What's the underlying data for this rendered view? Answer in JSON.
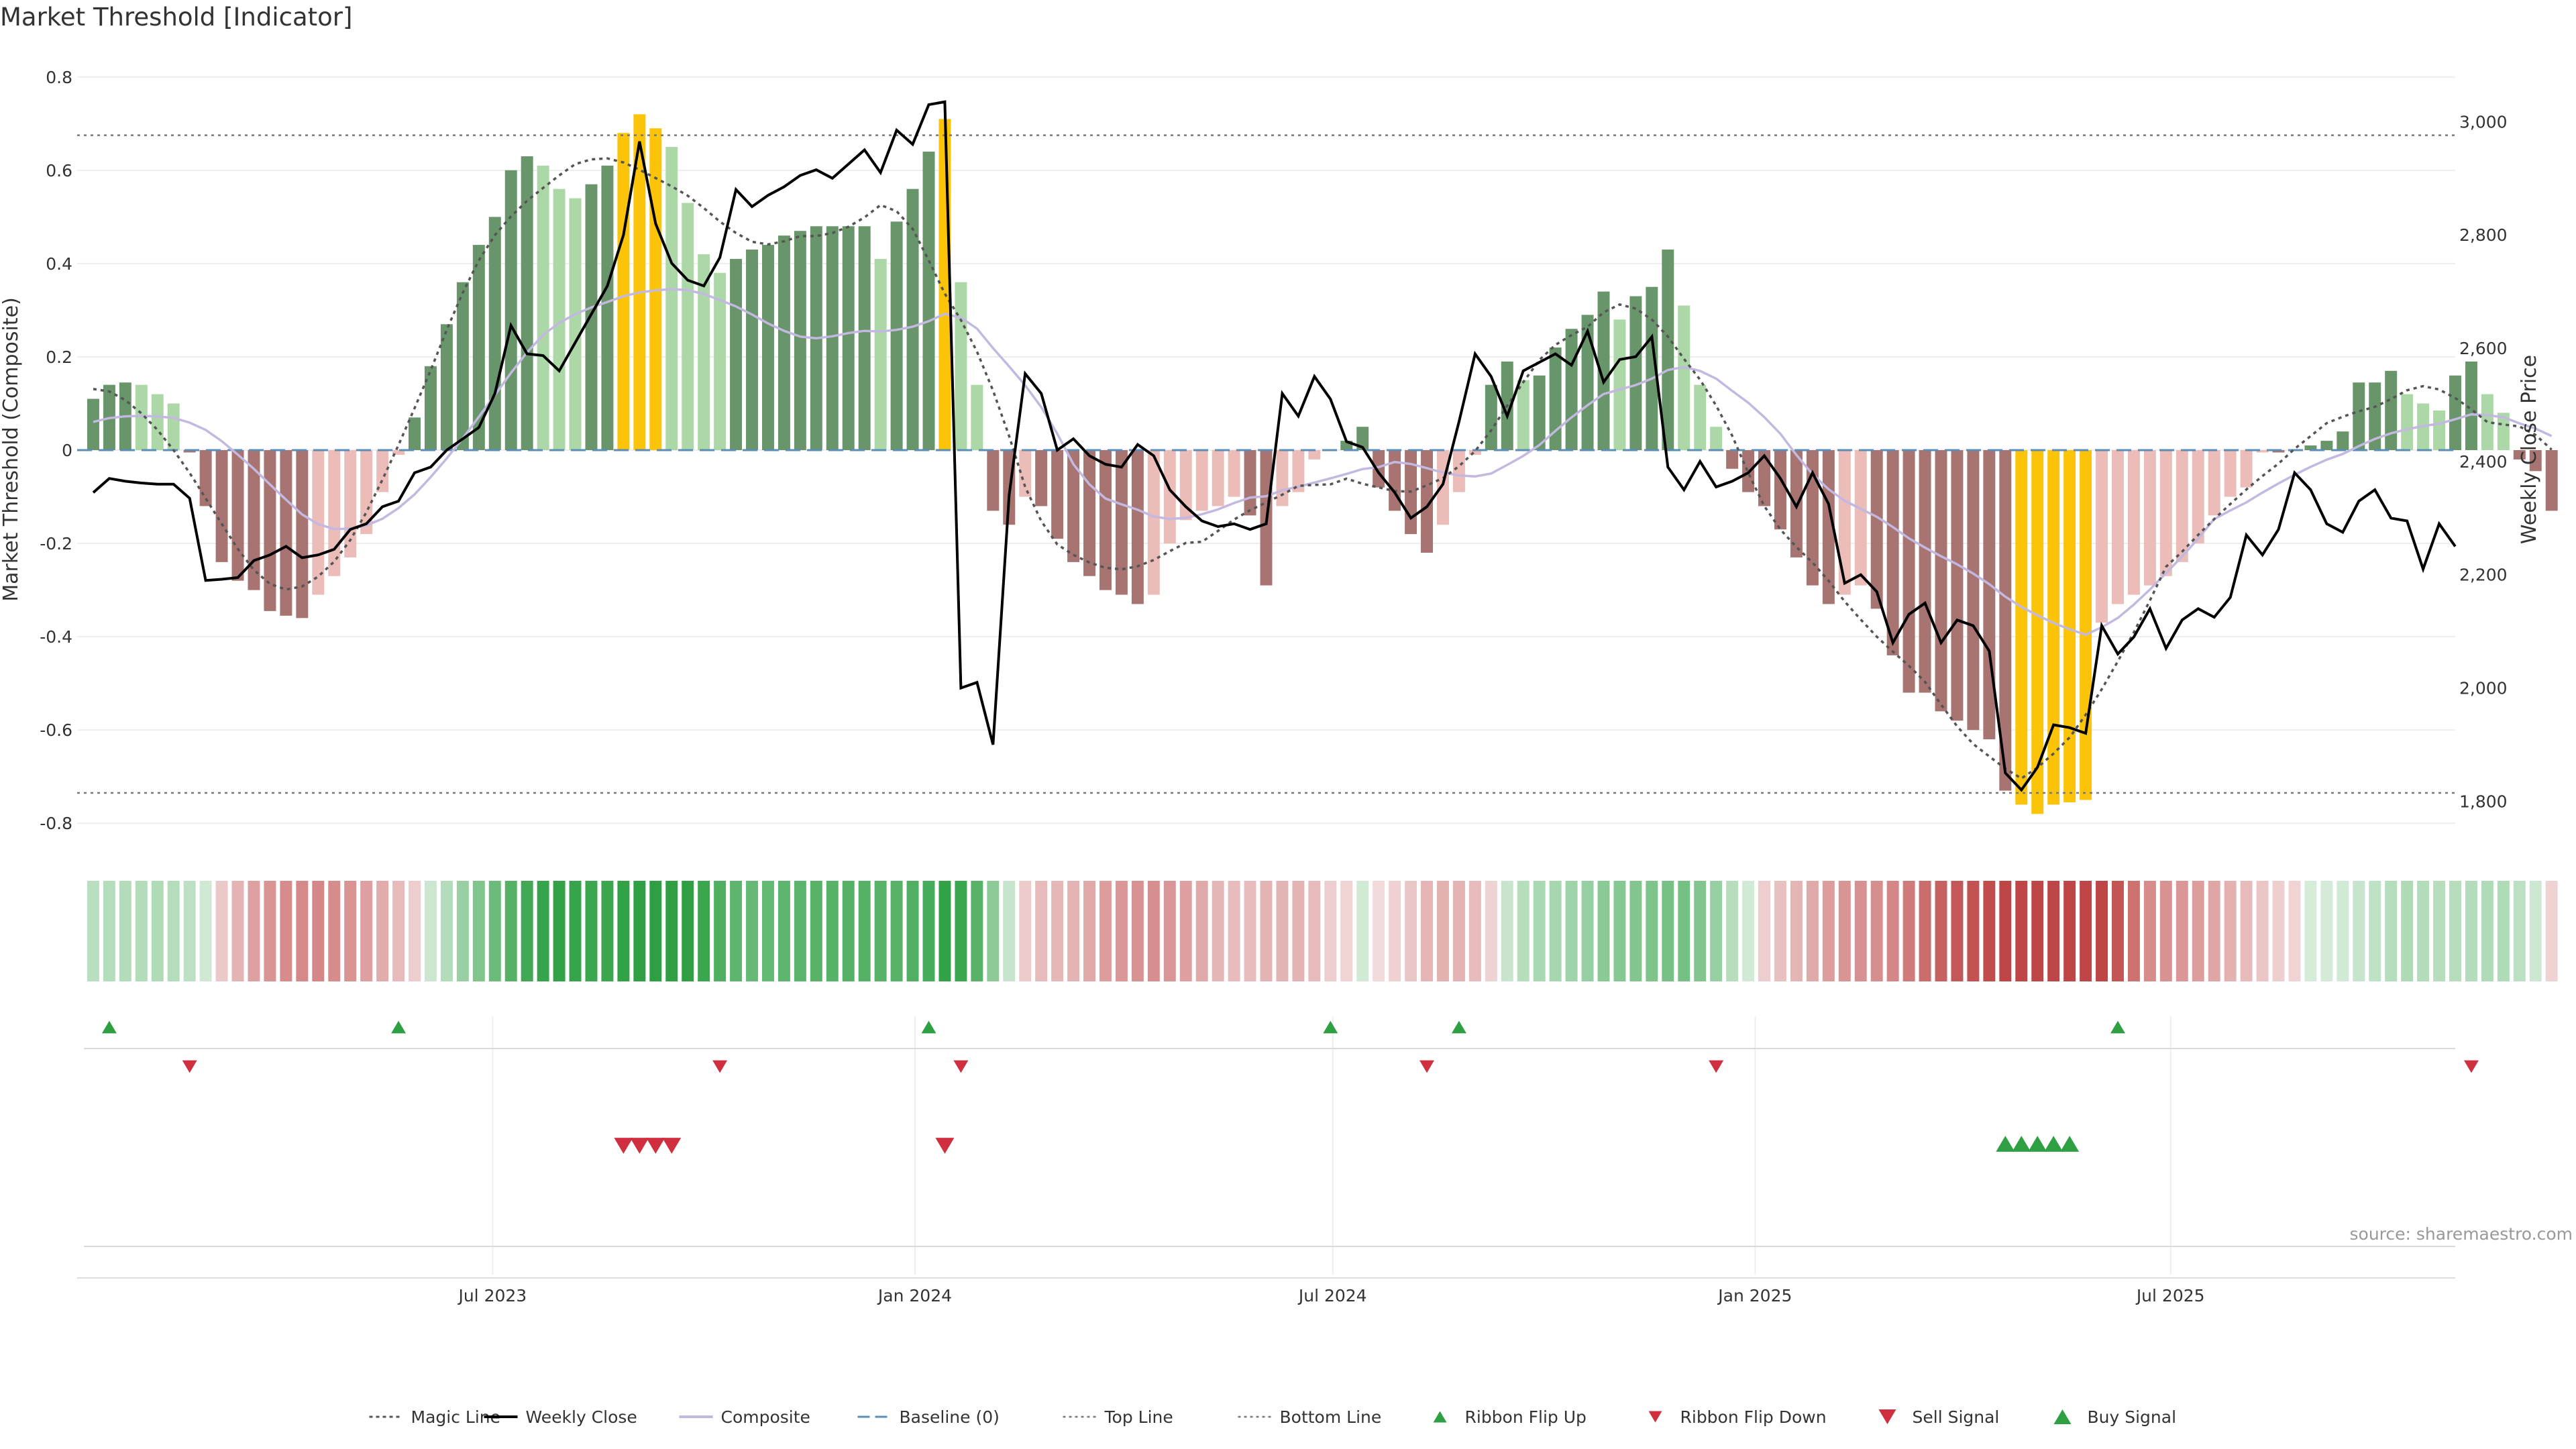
{
  "chart_data": {
    "type": "bar",
    "title": "Market Threshold [Indicator]",
    "ylabel": "Market Threshold (Composite)",
    "y2label": "Weekly Close Price",
    "source": "source: sharemaestro.com",
    "ylim": [
      -0.85,
      0.85
    ],
    "y2lim": [
      1720,
      3120
    ],
    "xlim": [
      "2023-01-01",
      "2025-11-02"
    ],
    "y_ticks": [
      {
        "v": 0.8,
        "label": "0.8"
      },
      {
        "v": 0.6,
        "label": "0.6"
      },
      {
        "v": 0.4,
        "label": "0.4"
      },
      {
        "v": 0.2,
        "label": "0.2"
      },
      {
        "v": 0,
        "label": "0"
      },
      {
        "v": -0.2,
        "label": "-0.2"
      },
      {
        "v": -0.4,
        "label": "-0.4"
      },
      {
        "v": -0.6,
        "label": "-0.6"
      },
      {
        "v": -0.8,
        "label": "-0.8"
      }
    ],
    "y2_ticks": [
      {
        "v": 3000,
        "label": "3,000"
      },
      {
        "v": 2800,
        "label": "2,800"
      },
      {
        "v": 2600,
        "label": "2,600"
      },
      {
        "v": 2400,
        "label": "2,400"
      },
      {
        "v": 2200,
        "label": "2,200"
      },
      {
        "v": 2000,
        "label": "2,000"
      },
      {
        "v": 1800,
        "label": "1,800"
      }
    ],
    "x_ticks": [
      {
        "date": "2023-07-01",
        "label": "Jul 2023"
      },
      {
        "date": "2024-01-01",
        "label": "Jan 2024"
      },
      {
        "date": "2024-07-01",
        "label": "Jul 2024"
      },
      {
        "date": "2025-01-01",
        "label": "Jan 2025"
      },
      {
        "date": "2025-07-01",
        "label": "Jul 2025"
      }
    ],
    "top_line": 0.675,
    "bottom_line": -0.735,
    "weeks_start": "2023-01-08",
    "week_days": 7,
    "composite_bars": [
      0.11,
      0.14,
      0.145,
      0.14,
      0.12,
      0.1,
      -0.005,
      -0.12,
      -0.24,
      -0.28,
      -0.3,
      -0.345,
      -0.355,
      -0.36,
      -0.31,
      -0.27,
      -0.23,
      -0.18,
      -0.09,
      -0.01,
      0.07,
      0.18,
      0.27,
      0.36,
      0.44,
      0.5,
      0.6,
      0.63,
      0.61,
      0.56,
      0.54,
      0.57,
      0.61,
      0.68,
      0.72,
      0.69,
      0.65,
      0.53,
      0.42,
      0.38,
      0.41,
      0.43,
      0.44,
      0.46,
      0.47,
      0.48,
      0.48,
      0.48,
      0.48,
      0.41,
      0.49,
      0.56,
      0.64,
      0.71,
      0.36,
      0.14,
      -0.13,
      -0.16,
      -0.1,
      -0.12,
      -0.19,
      -0.24,
      -0.27,
      -0.3,
      -0.31,
      -0.33,
      -0.31,
      -0.2,
      -0.15,
      -0.13,
      -0.12,
      -0.1,
      -0.14,
      -0.29,
      -0.12,
      -0.09,
      -0.02,
      0,
      0.02,
      0.05,
      -0.08,
      -0.13,
      -0.18,
      -0.22,
      -0.16,
      -0.09,
      -0.01,
      0.14,
      0.19,
      0.15,
      0.16,
      0.22,
      0.26,
      0.29,
      0.34,
      0.28,
      0.33,
      0.35,
      0.43,
      0.31,
      0.14,
      0.05,
      -0.04,
      -0.09,
      -0.12,
      -0.17,
      -0.23,
      -0.29,
      -0.33,
      -0.31,
      -0.29,
      -0.34,
      -0.44,
      -0.52,
      -0.52,
      -0.56,
      -0.58,
      -0.6,
      -0.62,
      -0.73,
      -0.76,
      -0.78,
      -0.76,
      -0.755,
      -0.75,
      -0.37,
      -0.33,
      -0.31,
      -0.29,
      -0.27,
      -0.24,
      -0.2,
      -0.14,
      -0.1,
      -0.08,
      -0.005,
      -0.005,
      0,
      0.01,
      0.02,
      0.04,
      0.145,
      0.145,
      0.17,
      0.12,
      0.1,
      0.085,
      0.16,
      0.19,
      0.12,
      0.08,
      -0.02,
      -0.045,
      -0.13
    ],
    "weekly_close": [
      2345,
      2370,
      2365,
      2362,
      2360,
      2360,
      2335,
      2190,
      2192,
      2195,
      2225,
      2235,
      2250,
      2230,
      2235,
      2245,
      2280,
      2290,
      2320,
      2330,
      2380,
      2390,
      2420,
      2440,
      2460,
      2520,
      2640,
      2590,
      2587,
      2560,
      2610,
      2660,
      2710,
      2800,
      2965,
      2820,
      2750,
      2720,
      2710,
      2760,
      2880,
      2850,
      2870,
      2885,
      2905,
      2915,
      2900,
      2925,
      2950,
      2910,
      2985,
      2960,
      3030,
      3035,
      2000,
      2010,
      1900,
      2340,
      2555,
      2520,
      2420,
      2440,
      2410,
      2395,
      2390,
      2430,
      2410,
      2350,
      2320,
      2295,
      2285,
      2290,
      2280,
      2290,
      2520,
      2480,
      2550,
      2510,
      2435,
      2425,
      2380,
      2345,
      2300,
      2320,
      2360,
      2470,
      2590,
      2550,
      2480,
      2560,
      2575,
      2590,
      2570,
      2630,
      2540,
      2580,
      2585,
      2620,
      2390,
      2350,
      2400,
      2355,
      2365,
      2380,
      2410,
      2370,
      2320,
      2380,
      2325,
      2185,
      2200,
      2170,
      2080,
      2130,
      2150,
      2080,
      2120,
      2110,
      2065,
      1850,
      1820,
      1860,
      1935,
      1930,
      1920,
      2110,
      2060,
      2090,
      2140,
      2070,
      2120,
      2140,
      2125,
      2160,
      2270,
      2235,
      2280,
      2380,
      2350,
      2290,
      2275,
      2330,
      2350,
      2300,
      2295,
      2210,
      2290,
      2250
    ]
  },
  "legend": [
    {
      "key": "magic",
      "label": "Magic Line"
    },
    {
      "key": "close",
      "label": "Weekly Close"
    },
    {
      "key": "composite",
      "label": "Composite"
    },
    {
      "key": "baseline",
      "label": "Baseline (0)"
    },
    {
      "key": "top",
      "label": "Top Line"
    },
    {
      "key": "bottom",
      "label": "Bottom Line"
    },
    {
      "key": "flip_up",
      "label": "Ribbon Flip Up"
    },
    {
      "key": "flip_down",
      "label": "Ribbon Flip Down"
    },
    {
      "key": "sell",
      "label": "Sell Signal"
    },
    {
      "key": "buy",
      "label": "Buy Signal"
    }
  ],
  "signals": {
    "ribbon_flip_up_weeks": [
      1,
      19,
      52,
      77,
      85,
      126
    ],
    "ribbon_flip_down_weeks": [
      6,
      39,
      54,
      83,
      101,
      148
    ],
    "sell_signal_weeks": [
      33,
      34,
      35,
      36,
      53
    ],
    "buy_signal_weeks": [
      119,
      120,
      121,
      122,
      123
    ]
  },
  "colors": {
    "dark_green": "#68956a",
    "light_green": "#acd7a6",
    "dark_red": "#a77472",
    "light_red": "#ebbcb8",
    "extreme": "#fbc409",
    "composite_line": "#c3b8e0",
    "close_line": "#000000",
    "magic_line": "#555555",
    "baseline": "#5b8db8",
    "signal_green": "#2ea043",
    "signal_red": "#cf2f3e"
  }
}
